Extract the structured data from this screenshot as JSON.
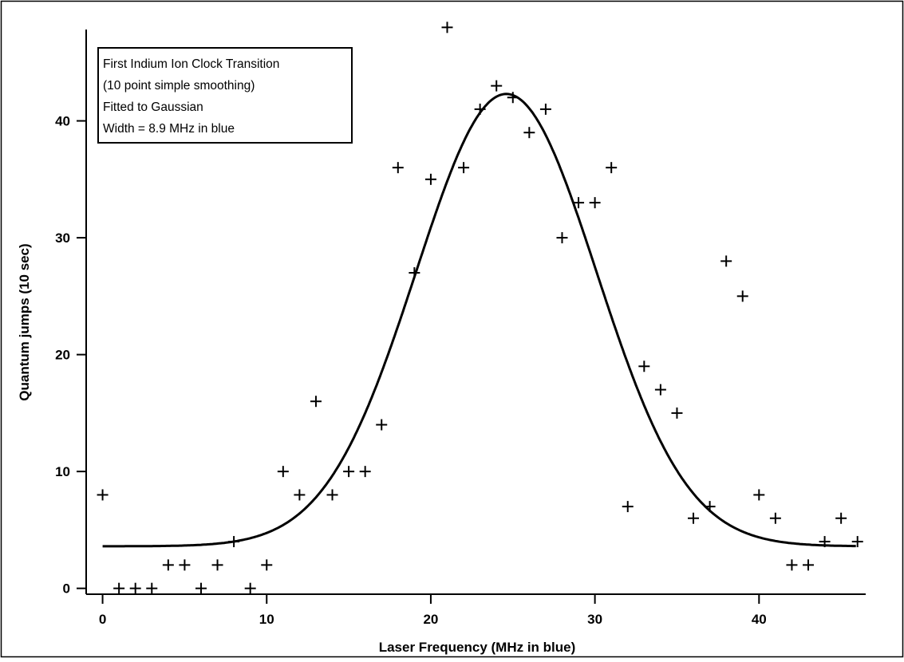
{
  "chart_data": {
    "type": "scatter",
    "xlabel": "Laser Frequency (MHz in blue)",
    "ylabel": "Quantum jumps (10 sec)",
    "xlim": [
      -1,
      46.5
    ],
    "ylim": [
      -0.5,
      48.5
    ],
    "x_ticks": [
      0,
      10,
      20,
      30,
      40
    ],
    "y_ticks": [
      0,
      10,
      20,
      30,
      40
    ],
    "x_tick_labels": [
      "0",
      "10",
      "20",
      "30",
      "40"
    ],
    "y_tick_labels": [
      "0",
      "10",
      "20",
      "30",
      "40"
    ],
    "grid": false,
    "legend_placement": "top-left",
    "annotation_lines": [
      "First Indium Ion Clock Transition",
      "(10 point simple smoothing)",
      "Fitted to Gaussian",
      "Width = 8.9 MHz in blue"
    ],
    "series": [
      {
        "kind": "points",
        "marker": "plus",
        "x": [
          0,
          1,
          2,
          3,
          4,
          5,
          6,
          7,
          8,
          9,
          10,
          11,
          12,
          13,
          14,
          15,
          16,
          17,
          18,
          19,
          20,
          21,
          22,
          23,
          24,
          25,
          26,
          27,
          28,
          29,
          30,
          31,
          32,
          33,
          34,
          35,
          36,
          37,
          38,
          39,
          40,
          41,
          42,
          43,
          44,
          45,
          46
        ],
        "y": [
          8,
          0,
          0,
          0,
          2,
          2,
          0,
          2,
          4,
          0,
          2,
          10,
          8,
          16,
          8,
          10,
          10,
          14,
          36,
          27,
          35,
          48,
          36,
          41,
          43,
          42,
          39,
          41,
          30,
          33,
          33,
          36,
          7,
          19,
          17,
          15,
          6,
          7,
          28,
          25,
          8,
          6,
          2,
          2,
          4,
          6,
          4
        ]
      },
      {
        "kind": "fit",
        "model": "gaussian",
        "baseline": 3.6,
        "amplitude": 38.7,
        "center": 24.6,
        "sigma": 5.5
      }
    ]
  }
}
